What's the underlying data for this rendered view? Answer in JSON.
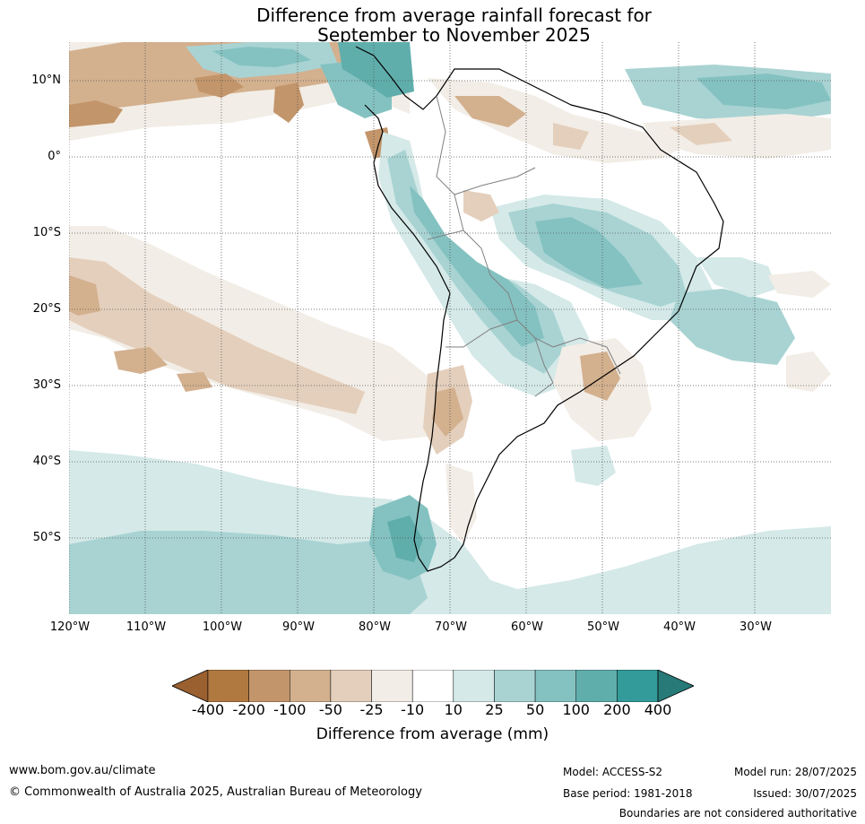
{
  "title_line1": "Difference from average rainfall forecast for",
  "title_line2": "September to November 2025",
  "lat_labels": [
    "10°N",
    "0°",
    "10°S",
    "20°S",
    "30°S",
    "40°S",
    "50°S"
  ],
  "lon_labels": [
    "120°W",
    "110°W",
    "100°W",
    "90°W",
    "80°W",
    "70°W",
    "60°W",
    "50°W",
    "40°W",
    "30°W"
  ],
  "colorbar": {
    "ticks": [
      "-400",
      "-200",
      "-100",
      "-50",
      "-25",
      "-10",
      "10",
      "25",
      "50",
      "100",
      "200",
      "400"
    ],
    "colors": [
      "#9a6030",
      "#b07940",
      "#c3956a",
      "#d3b08e",
      "#e4cfbc",
      "#f2ede6",
      "#ffffff",
      "#d4e9e8",
      "#a9d3d3",
      "#84c2c1",
      "#5faeac",
      "#339b99",
      "#277a78"
    ],
    "label": "Difference from average (mm)"
  },
  "footer": {
    "website": "www.bom.gov.au/climate",
    "copyright": "© Commonwealth of Australia 2025, Australian Bureau of Meteorology",
    "model": "Model: ACCESS-S2",
    "base_period": "Base period: 1981-2018",
    "model_run": "Model run: 28/07/2025",
    "issued": "Issued: 30/07/2025",
    "disclaimer": "Boundaries are not considered authoritative"
  }
}
